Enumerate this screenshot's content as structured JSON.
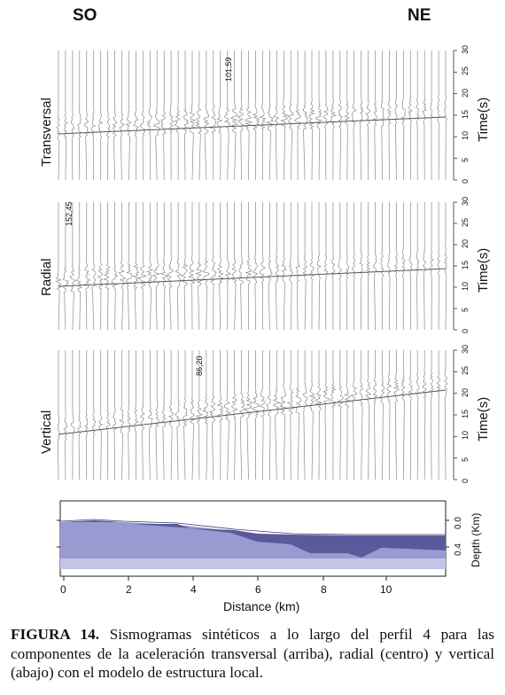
{
  "directions": {
    "left": "SO",
    "right": "NE"
  },
  "panels": [
    {
      "label": "Transversal",
      "amplitude": "101,59",
      "time_axis_title": "Time(s)"
    },
    {
      "label": "Radial",
      "amplitude": "152,45",
      "time_axis_title": "Time(s)"
    },
    {
      "label": "Vertical",
      "amplitude": "86,20",
      "time_axis_title": "Time(s)"
    }
  ],
  "time_ticks": [
    "0",
    "5",
    "10",
    "15",
    "20",
    "25",
    "30"
  ],
  "model": {
    "depth_title": "Depth (Km)",
    "depth_ticks": [
      "0.0",
      "0.4"
    ],
    "distance_title": "Distance (km)",
    "distance_ticks": [
      "0",
      "2",
      "4",
      "6",
      "8",
      "10"
    ],
    "colors": {
      "upper": "#5a5a9a",
      "lower": "#9a9ad2",
      "basement": "#c4c4e6"
    }
  },
  "caption": {
    "label": "FIGURA 14.",
    "text": "Sismogramas sintéticos a lo largo del perfil 4 para las componentes de la aceleración transversal (arriba), radial (centro) y vertical (abajo) con el modelo de estructura local."
  }
}
